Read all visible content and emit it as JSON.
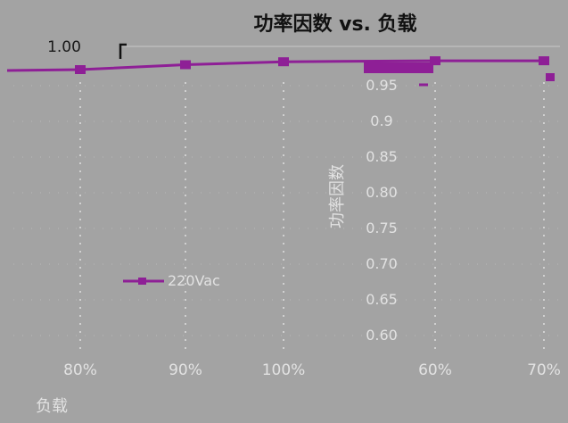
{
  "chart_data": {
    "type": "line",
    "title": "功率因数 vs. 负载",
    "xlabel": "负载",
    "ylabel": "功率因数",
    "categories": [
      "80%",
      "90%",
      "100%",
      "60%",
      "70%"
    ],
    "top_value_label": "1.00",
    "y_ticks": [
      "0.95",
      "0.9",
      "0.85",
      "0.80",
      "0.75",
      "0.70",
      "0.65",
      "0.60"
    ],
    "ylim": [
      0.6,
      1.0
    ],
    "grid": true,
    "legend": "center-left",
    "series": [
      {
        "name": "220Vac",
        "values": [
          0.99,
          0.995,
          0.998,
          0.999,
          0.999
        ]
      }
    ],
    "colors": {
      "series": "#8e1f96",
      "grid": "#e0e0e0",
      "background": "#a3a3a3"
    }
  }
}
